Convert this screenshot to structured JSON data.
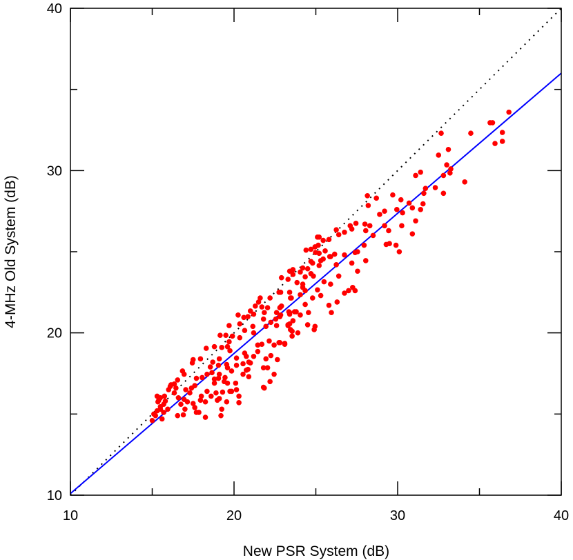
{
  "chart_data": {
    "type": "scatter",
    "title": "",
    "xlabel": "New PSR System (dB)",
    "ylabel": "4-MHz Old System (dB)",
    "xlim": [
      10,
      40
    ],
    "ylim": [
      10,
      40
    ],
    "x_ticks": [
      "10",
      "20",
      "30",
      "40"
    ],
    "y_ticks": [
      "10",
      "20",
      "30",
      "40"
    ],
    "x_tick_values": [
      10,
      20,
      30,
      40
    ],
    "y_tick_values": [
      10,
      20,
      30,
      40
    ],
    "minor_tick_values": [
      15,
      25,
      35
    ],
    "grid": false,
    "colors": {
      "points": "#ff0000",
      "fit_line": "#0000ff",
      "identity_line": "#000000"
    },
    "reference_lines": [
      {
        "kind": "identity",
        "style": "dotted",
        "points": [
          [
            10,
            10
          ],
          [
            40,
            40
          ]
        ]
      },
      {
        "kind": "fit",
        "style": "solid",
        "points": [
          [
            10,
            10.1
          ],
          [
            40,
            36.0
          ]
        ]
      }
    ],
    "points": [
      [
        35.65,
        32.95
      ],
      [
        35.8,
        32.95
      ],
      [
        35.95,
        31.67
      ],
      [
        36.4,
        31.8
      ],
      [
        36.4,
        32.35
      ],
      [
        36.8,
        33.6
      ],
      [
        34.47,
        32.3
      ],
      [
        32.66,
        32.3
      ],
      [
        32.5,
        30.95
      ],
      [
        33.1,
        31.3
      ],
      [
        33.0,
        30.35
      ],
      [
        33.25,
        30.1
      ],
      [
        33.2,
        29.85
      ],
      [
        32.8,
        29.7
      ],
      [
        31.4,
        29.9
      ],
      [
        31.1,
        29.7
      ],
      [
        34.1,
        29.3
      ],
      [
        32.3,
        28.95
      ],
      [
        31.7,
        28.9
      ],
      [
        31.6,
        28.6
      ],
      [
        32.8,
        28.6
      ],
      [
        30.7,
        28.0
      ],
      [
        31.55,
        27.95
      ],
      [
        30.9,
        27.7
      ],
      [
        31.4,
        27.6
      ],
      [
        31.1,
        26.9
      ],
      [
        30.9,
        26.1
      ],
      [
        30.2,
        28.2
      ],
      [
        29.7,
        28.5
      ],
      [
        29.95,
        27.6
      ],
      [
        30.3,
        27.4
      ],
      [
        30.25,
        26.6
      ],
      [
        29.2,
        27.5
      ],
      [
        28.9,
        27.3
      ],
      [
        28.7,
        28.3
      ],
      [
        28.15,
        28.45
      ],
      [
        28.2,
        27.85
      ],
      [
        29.2,
        26.6
      ],
      [
        29.45,
        26.3
      ],
      [
        29.3,
        25.45
      ],
      [
        29.5,
        25.5
      ],
      [
        29.9,
        25.4
      ],
      [
        30.1,
        25.0
      ],
      [
        28.5,
        26.0
      ],
      [
        28.0,
        26.7
      ],
      [
        28.3,
        26.6
      ],
      [
        28.05,
        26.3
      ],
      [
        27.95,
        25.4
      ],
      [
        28.05,
        24.45
      ],
      [
        27.55,
        23.8
      ],
      [
        27.45,
        26.75
      ],
      [
        27.1,
        26.6
      ],
      [
        27.2,
        26.4
      ],
      [
        26.75,
        26.2
      ],
      [
        26.25,
        26.35
      ],
      [
        26.4,
        26.05
      ],
      [
        27.4,
        24.95
      ],
      [
        27.55,
        25.0
      ],
      [
        26.75,
        24.8
      ],
      [
        26.15,
        24.85
      ],
      [
        25.85,
        24.7
      ],
      [
        26.25,
        24.2
      ],
      [
        27.2,
        24.3
      ],
      [
        26.4,
        23.5
      ],
      [
        26.75,
        22.45
      ],
      [
        27.0,
        22.6
      ],
      [
        27.25,
        22.8
      ],
      [
        27.4,
        22.6
      ],
      [
        26.3,
        21.9
      ],
      [
        25.8,
        21.7
      ],
      [
        25.95,
        21.25
      ],
      [
        25.9,
        23.0
      ],
      [
        25.5,
        23.15
      ],
      [
        25.3,
        22.3
      ],
      [
        25.1,
        22.65
      ],
      [
        24.8,
        22.15
      ],
      [
        24.35,
        21.75
      ],
      [
        24.55,
        21.25
      ],
      [
        24.05,
        21.1
      ],
      [
        24.5,
        20.5
      ],
      [
        24.95,
        20.4
      ],
      [
        24.9,
        20.2
      ],
      [
        23.9,
        20.0
      ],
      [
        23.55,
        19.8
      ],
      [
        23.6,
        20.75
      ],
      [
        23.3,
        20.45
      ],
      [
        23.45,
        20.2
      ],
      [
        22.8,
        19.4
      ],
      [
        23.1,
        19.35
      ],
      [
        25.1,
        25.9
      ],
      [
        25.2,
        25.9
      ],
      [
        25.45,
        25.7
      ],
      [
        25.8,
        25.75
      ],
      [
        24.4,
        25.1
      ],
      [
        24.7,
        25.15
      ],
      [
        24.95,
        25.3
      ],
      [
        25.15,
        25.4
      ],
      [
        24.98,
        24.95
      ],
      [
        25.2,
        24.9
      ],
      [
        25.57,
        25.05
      ],
      [
        25.9,
        24.7
      ],
      [
        25.3,
        24.45
      ],
      [
        25.45,
        24.55
      ],
      [
        24.7,
        24.4
      ],
      [
        24.8,
        24.3
      ],
      [
        25.2,
        24.15
      ],
      [
        24.2,
        24.0
      ],
      [
        24.5,
        23.95
      ],
      [
        23.4,
        23.8
      ],
      [
        23.6,
        23.9
      ],
      [
        23.6,
        23.6
      ],
      [
        24.05,
        23.75
      ],
      [
        24.7,
        23.65
      ],
      [
        24.85,
        23.5
      ],
      [
        24.35,
        23.45
      ],
      [
        23.3,
        23.3
      ],
      [
        22.9,
        23.4
      ],
      [
        23.85,
        23.1
      ],
      [
        24.2,
        23.0
      ],
      [
        24.2,
        22.8
      ],
      [
        24.35,
        22.6
      ],
      [
        24.05,
        22.35
      ],
      [
        23.4,
        22.5
      ],
      [
        23.5,
        22.15
      ],
      [
        22.85,
        22.5
      ],
      [
        22.8,
        21.55
      ],
      [
        22.9,
        21.65
      ],
      [
        22.6,
        21.25
      ],
      [
        23.7,
        21.3
      ],
      [
        23.8,
        21.3
      ],
      [
        23.35,
        21.3
      ],
      [
        23.4,
        21.15
      ],
      [
        22.75,
        22.5
      ],
      [
        23.45,
        22.15
      ],
      [
        22.2,
        22.15
      ],
      [
        21.6,
        22.15
      ],
      [
        21.5,
        21.9
      ],
      [
        21.3,
        21.65
      ],
      [
        21.7,
        21.6
      ],
      [
        22.05,
        21.55
      ],
      [
        22.85,
        21.6
      ],
      [
        21.0,
        21.35
      ],
      [
        21.85,
        21.25
      ],
      [
        22.85,
        21.1
      ],
      [
        20.25,
        21.1
      ],
      [
        20.6,
        20.95
      ],
      [
        20.85,
        21.0
      ],
      [
        21.8,
        20.85
      ],
      [
        23.4,
        21.25
      ],
      [
        23.4,
        20.55
      ],
      [
        23.55,
        20.1
      ],
      [
        20.35,
        20.55
      ],
      [
        19.7,
        20.45
      ],
      [
        21.15,
        20.4
      ],
      [
        20.65,
        20.15
      ],
      [
        21.2,
        20.0
      ],
      [
        20.35,
        19.7
      ],
      [
        19.9,
        19.8
      ],
      [
        19.5,
        19.85
      ],
      [
        19.15,
        19.85
      ],
      [
        19.7,
        19.45
      ],
      [
        19.6,
        19.15
      ],
      [
        19.75,
        18.9
      ],
      [
        19.25,
        19.1
      ],
      [
        18.8,
        19.15
      ],
      [
        18.3,
        19.05
      ],
      [
        17.95,
        18.4
      ],
      [
        17.5,
        18.35
      ],
      [
        17.45,
        18.15
      ],
      [
        16.85,
        17.65
      ],
      [
        16.95,
        17.45
      ],
      [
        16.55,
        17.1
      ],
      [
        16.15,
        16.8
      ],
      [
        16.0,
        16.5
      ],
      [
        15.75,
        16.1
      ],
      [
        15.3,
        16.1
      ],
      [
        15.35,
        15.75
      ],
      [
        15.5,
        15.45
      ],
      [
        15.3,
        15.2
      ],
      [
        15.7,
        15.1
      ],
      [
        15.6,
        14.7
      ],
      [
        15.0,
        14.6
      ],
      [
        15.2,
        14.9
      ],
      [
        15.95,
        15.3
      ],
      [
        16.55,
        14.9
      ],
      [
        16.9,
        14.95
      ],
      [
        17.0,
        15.3
      ],
      [
        16.6,
        16.0
      ],
      [
        16.95,
        15.9
      ],
      [
        17.15,
        15.75
      ],
      [
        16.75,
        15.6
      ],
      [
        17.5,
        15.65
      ],
      [
        17.6,
        15.4
      ],
      [
        17.7,
        15.1
      ],
      [
        17.85,
        15.1
      ],
      [
        18.25,
        14.8
      ],
      [
        17.3,
        16.3
      ],
      [
        17.05,
        16.5
      ],
      [
        17.4,
        16.6
      ],
      [
        17.6,
        16.75
      ],
      [
        17.95,
        15.85
      ],
      [
        18.0,
        16.1
      ],
      [
        18.35,
        16.4
      ],
      [
        18.25,
        15.75
      ],
      [
        18.6,
        16.1
      ],
      [
        18.9,
        16.3
      ],
      [
        18.8,
        16.9
      ],
      [
        18.98,
        15.85
      ],
      [
        19.1,
        15.95
      ],
      [
        19.25,
        15.3
      ],
      [
        19.2,
        14.9
      ],
      [
        19.55,
        15.75
      ],
      [
        19.75,
        16.4
      ],
      [
        19.3,
        16.35
      ],
      [
        19.4,
        17.0
      ],
      [
        19.45,
        17.25
      ],
      [
        19.1,
        17.45
      ],
      [
        19.05,
        17.2
      ],
      [
        19.6,
        16.9
      ],
      [
        20.15,
        16.5
      ],
      [
        20.3,
        16.1
      ],
      [
        20.3,
        15.7
      ],
      [
        20.1,
        16.9
      ],
      [
        19.85,
        16.4
      ],
      [
        20.55,
        17.45
      ],
      [
        20.9,
        17.3
      ],
      [
        20.75,
        17.7
      ],
      [
        20.85,
        17.75
      ],
      [
        20.9,
        18.2
      ],
      [
        21.0,
        18.15
      ],
      [
        20.55,
        18.1
      ],
      [
        20.15,
        18.45
      ],
      [
        20.75,
        18.55
      ],
      [
        20.65,
        18.75
      ],
      [
        21.2,
        18.55
      ],
      [
        21.45,
        19.25
      ],
      [
        21.7,
        19.3
      ],
      [
        21.45,
        18.85
      ],
      [
        21.95,
        18.4
      ],
      [
        22.25,
        18.6
      ],
      [
        22.65,
        18.35
      ],
      [
        21.8,
        17.85
      ],
      [
        22.05,
        17.85
      ],
      [
        22.45,
        17.45
      ],
      [
        22.2,
        17.0
      ],
      [
        21.8,
        16.65
      ],
      [
        21.85,
        16.6
      ],
      [
        22.15,
        19.5
      ],
      [
        22.75,
        19.4
      ],
      [
        23.1,
        19.3
      ],
      [
        22.45,
        19.25
      ],
      [
        22.6,
        20.45
      ],
      [
        23.3,
        20.5
      ],
      [
        22.55,
        20.85
      ],
      [
        22.8,
        21.0
      ],
      [
        21.95,
        20.4
      ],
      [
        22.25,
        20.65
      ],
      [
        21.2,
        21.15
      ],
      [
        16.35,
        16.85
      ],
      [
        16.1,
        16.7
      ],
      [
        15.5,
        16.0
      ],
      [
        15.4,
        15.85
      ],
      [
        15.8,
        15.8
      ],
      [
        15.7,
        15.6
      ],
      [
        15.1,
        15.0
      ],
      [
        15.5,
        15.3
      ],
      [
        16.35,
        16.3
      ],
      [
        16.45,
        16.6
      ],
      [
        19.1,
        18.4
      ],
      [
        18.7,
        18.2
      ],
      [
        18.55,
        17.9
      ],
      [
        18.35,
        17.45
      ],
      [
        18.05,
        17.25
      ],
      [
        17.7,
        17.2
      ],
      [
        18.65,
        17.55
      ],
      [
        18.8,
        17.15
      ],
      [
        19.05,
        18.0
      ],
      [
        19.55,
        18.05
      ],
      [
        19.6,
        17.85
      ],
      [
        19.85,
        17.65
      ],
      [
        20.15,
        18.0
      ]
    ]
  }
}
